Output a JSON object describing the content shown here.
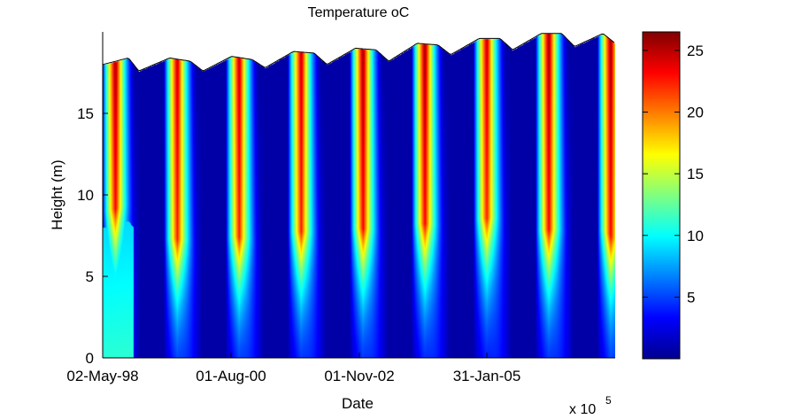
{
  "chart_data": {
    "type": "heatmap",
    "title": "Temperature oC",
    "xlabel": "Date",
    "ylabel": "Height (m)",
    "x_ticks": [
      "02-May-98",
      "01-Aug-00",
      "01-Nov-02",
      "31-Jan-05"
    ],
    "x_exponent_label": "x 10",
    "x_exponent": "5",
    "y_ticks": [
      0,
      5,
      10,
      15
    ],
    "ylim": [
      0,
      20
    ],
    "colorbar": {
      "ticks": [
        5,
        10,
        15,
        20,
        25
      ],
      "range": [
        0,
        26.5
      ],
      "colormap": "jet"
    },
    "date_range": [
      "1998-05-02",
      "2006-08-12"
    ],
    "surface_height": [
      [
        "1998-05-02",
        18.0
      ],
      [
        "1998-10-01",
        18.4
      ],
      [
        "1998-12-01",
        17.6
      ],
      [
        "1999-06-01",
        18.4
      ],
      [
        "1999-10-01",
        18.2
      ],
      [
        "1999-12-15",
        17.6
      ],
      [
        "2000-06-01",
        18.5
      ],
      [
        "2000-10-01",
        18.3
      ],
      [
        "2000-12-15",
        17.8
      ],
      [
        "2001-06-01",
        18.8
      ],
      [
        "2001-10-01",
        18.7
      ],
      [
        "2001-12-15",
        18.0
      ],
      [
        "2002-06-01",
        19.0
      ],
      [
        "2002-10-01",
        18.9
      ],
      [
        "2002-12-15",
        18.2
      ],
      [
        "2003-06-01",
        19.3
      ],
      [
        "2003-10-01",
        19.2
      ],
      [
        "2003-12-15",
        18.6
      ],
      [
        "2004-06-01",
        19.6
      ],
      [
        "2004-10-01",
        19.6
      ],
      [
        "2004-12-15",
        18.9
      ],
      [
        "2005-06-01",
        19.9
      ],
      [
        "2005-10-01",
        19.9
      ],
      [
        "2005-12-15",
        19.1
      ],
      [
        "2006-06-01",
        19.9
      ],
      [
        "2006-08-12",
        19.3
      ]
    ],
    "summer_peaks": [
      {
        "year": 1998,
        "surface_max": 26,
        "depth_of_warm_layer": 9
      },
      {
        "year": 1999,
        "surface_max": 25,
        "depth_of_warm_layer": 11
      },
      {
        "year": 2000,
        "surface_max": 25,
        "depth_of_warm_layer": 11
      },
      {
        "year": 2001,
        "surface_max": 25,
        "depth_of_warm_layer": 11
      },
      {
        "year": 2002,
        "surface_max": 26,
        "depth_of_warm_layer": 11
      },
      {
        "year": 2003,
        "surface_max": 26,
        "depth_of_warm_layer": 11
      },
      {
        "year": 2004,
        "surface_max": 25,
        "depth_of_warm_layer": 11
      },
      {
        "year": 2005,
        "surface_max": 26,
        "depth_of_warm_layer": 12
      }
    ],
    "winter_min": 1
  }
}
